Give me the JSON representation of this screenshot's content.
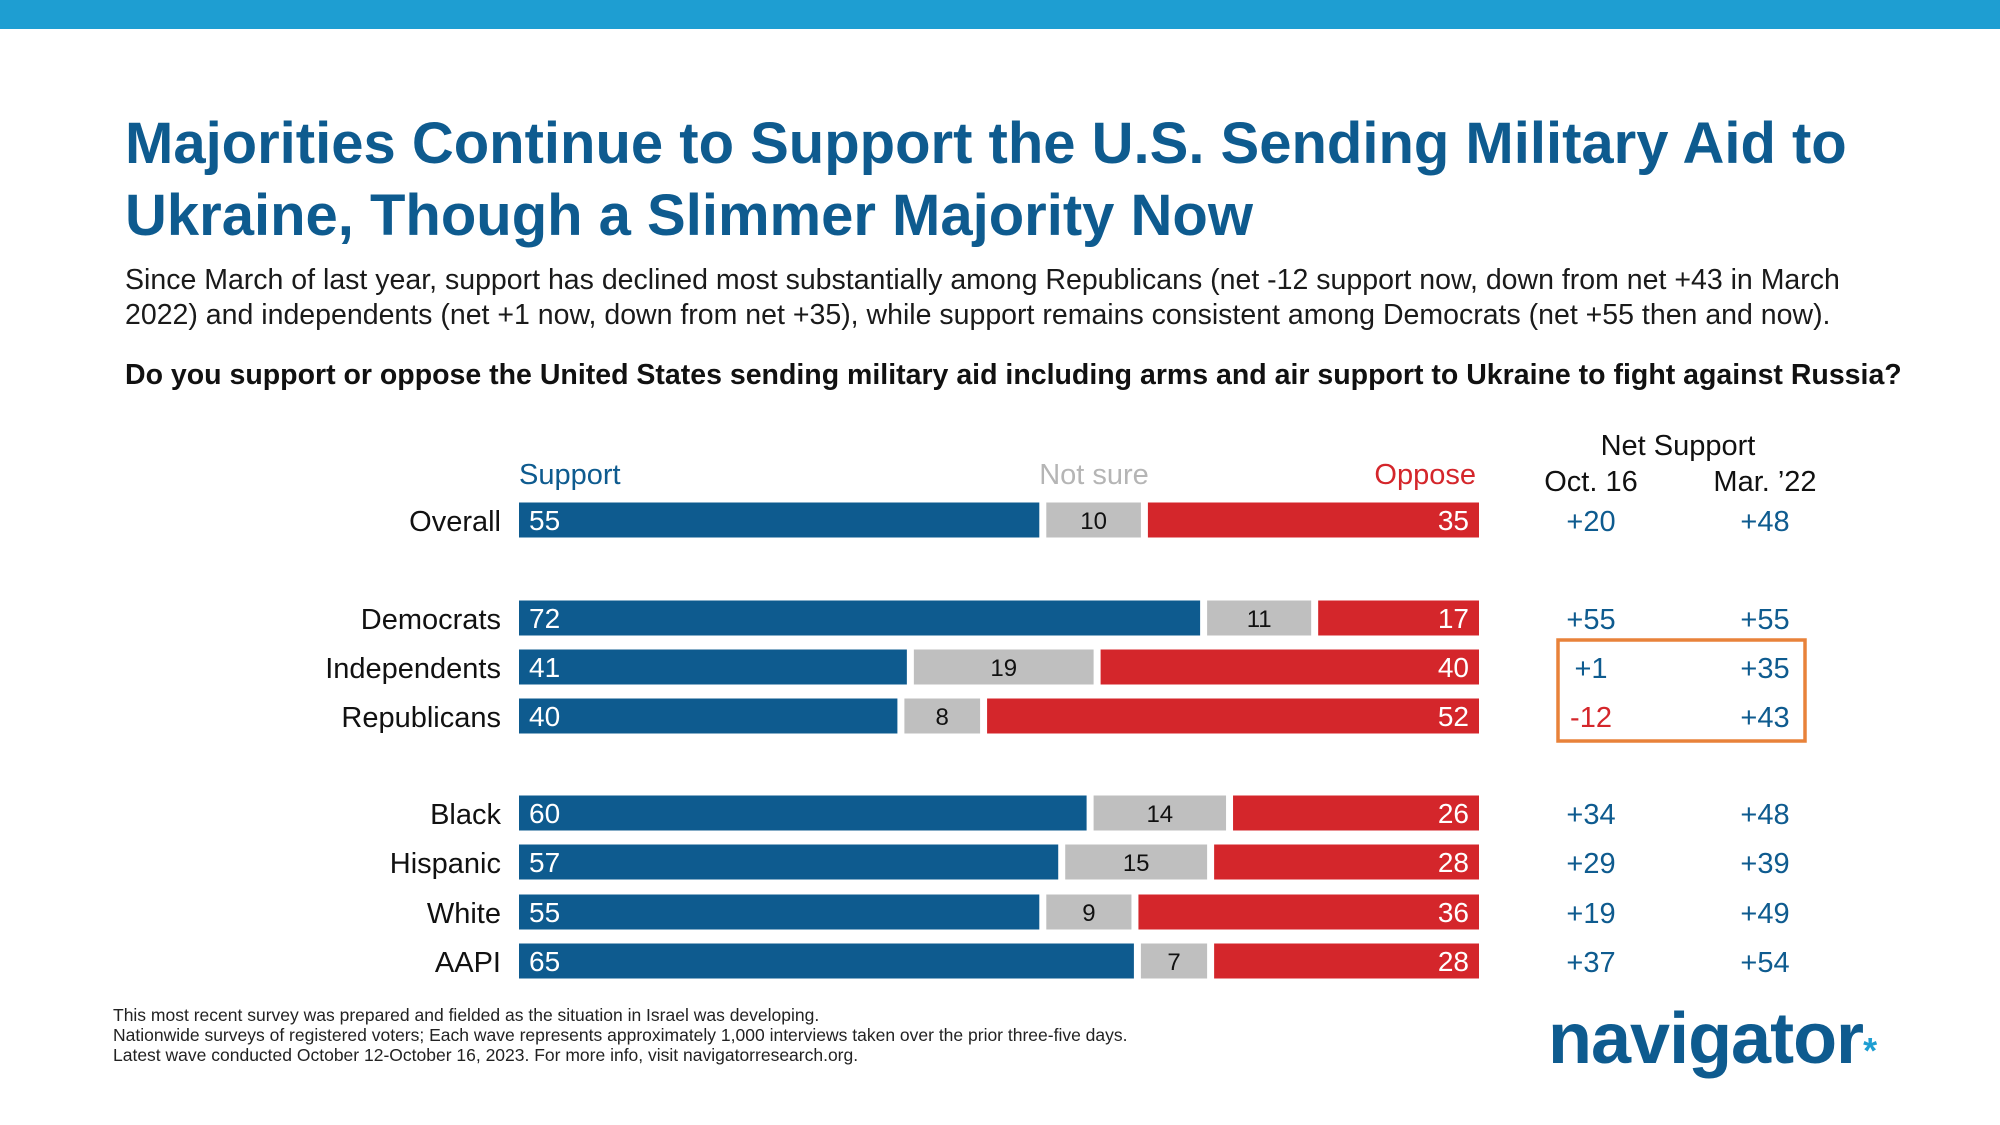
{
  "colors": {
    "support": "#0e5b8f",
    "not_sure": "#bfbfbf",
    "oppose": "#d4262b",
    "band": "#1e9ed2",
    "highlight_box": "#e8823a"
  },
  "title": "Majorities Continue to Support the U.S. Sending Military Aid to Ukraine, Though a Slimmer Majority Now",
  "subtitle": "Since March of last year, support has declined most substantially among Republicans (net -12 support now, down from net +43 in March 2022) and independents (net +1 now, down from net +35), while support remains consistent among Democrats (net +55 then and now).",
  "question": "Do you support or oppose the United States sending military aid including arms and air support to Ukraine to fight against Russia?",
  "chart_data": {
    "type": "bar",
    "orientation": "horizontal",
    "stacked": true,
    "legend": [
      "Support",
      "Not sure",
      "Oppose"
    ],
    "categories": [
      "Overall",
      "Democrats",
      "Independents",
      "Republicans",
      "Black",
      "Hispanic",
      "White",
      "AAPI"
    ],
    "groups": [
      [
        "Overall"
      ],
      [
        "Democrats",
        "Independents",
        "Republicans"
      ],
      [
        "Black",
        "Hispanic",
        "White",
        "AAPI"
      ]
    ],
    "series": [
      {
        "name": "Support",
        "values": [
          55,
          72,
          41,
          40,
          60,
          57,
          55,
          65
        ]
      },
      {
        "name": "Not sure",
        "values": [
          10,
          11,
          19,
          8,
          14,
          15,
          9,
          7
        ]
      },
      {
        "name": "Oppose",
        "values": [
          35,
          17,
          40,
          52,
          26,
          28,
          36,
          28
        ]
      }
    ],
    "net_support": {
      "header": "Net Support",
      "columns": [
        {
          "label": "Oct. 16",
          "values": [
            "+20",
            "+55",
            "+1",
            "-12",
            "+34",
            "+29",
            "+19",
            "+37"
          ]
        },
        {
          "label": "Mar. ’22",
          "values": [
            "+48",
            "+55",
            "+35",
            "+43",
            "+48",
            "+39",
            "+49",
            "+54"
          ]
        }
      ],
      "highlighted_rows": [
        "Independents",
        "Republicans"
      ]
    }
  },
  "footnotes": [
    "This most recent survey was prepared and fielded as the situation in Israel was developing.",
    "Nationwide surveys of registered voters; Each wave represents approximately 1,000 interviews taken over the prior three-five days.",
    "Latest wave conducted October 12-October 16, 2023. For more info, visit navigatorresearch.org."
  ],
  "logo": {
    "text": "navigator",
    "mark": "*"
  }
}
